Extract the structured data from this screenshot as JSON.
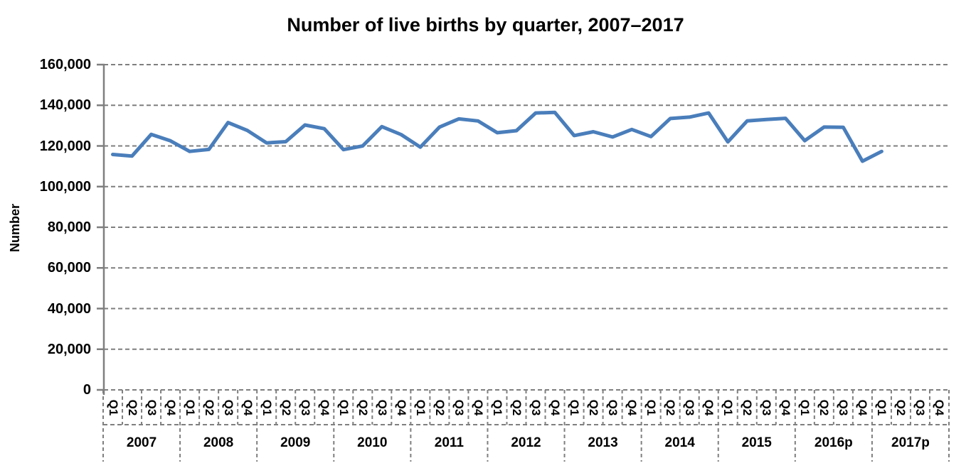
{
  "chart_data": {
    "type": "line",
    "title": "Number of live births by quarter, 2007–2017",
    "ylabel": "Number",
    "xlabel": "",
    "ylim": [
      0,
      160000
    ],
    "y_tick_step": 20000,
    "y_tick_labels": [
      "0",
      "20,000",
      "40,000",
      "60,000",
      "80,000",
      "100,000",
      "120,000",
      "140,000",
      "160,000"
    ],
    "grid": "horizontal-dashed",
    "legend_position": "none",
    "years": [
      "2007",
      "2008",
      "2009",
      "2010",
      "2011",
      "2012",
      "2013",
      "2014",
      "2015",
      "2016p",
      "2017p"
    ],
    "quarter_labels": [
      "Q1",
      "Q2",
      "Q3",
      "Q4"
    ],
    "series": [
      {
        "name": "Number of live births",
        "values": [
          115800,
          115000,
          125700,
          122500,
          117300,
          118300,
          131500,
          127600,
          121500,
          122100,
          130300,
          128500,
          118200,
          120000,
          129500,
          125600,
          119400,
          129300,
          133300,
          132300,
          126500,
          127500,
          136200,
          136500,
          125100,
          127000,
          124400,
          128100,
          124600,
          133500,
          134200,
          136200,
          122000,
          132300,
          133000,
          133600,
          122600,
          129300,
          129200,
          112500,
          117300,
          null,
          null,
          null
        ]
      }
    ],
    "colors": {
      "line": "#4A7EBB",
      "grid": "#7F7F7F",
      "text": "#000000"
    }
  }
}
